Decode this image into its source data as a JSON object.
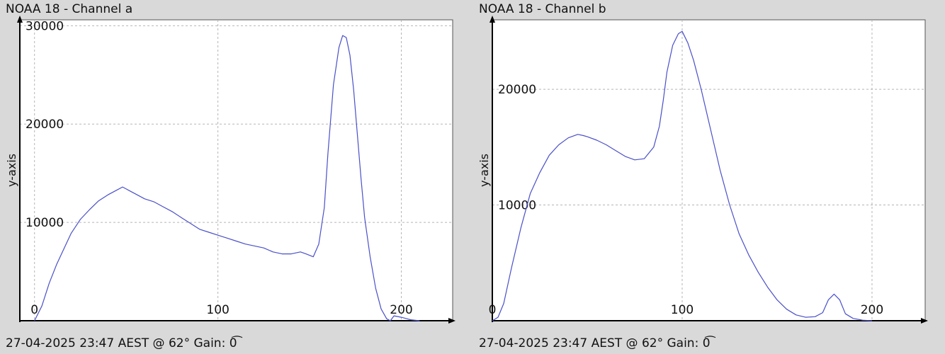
{
  "chart_data": [
    {
      "type": "line",
      "title": "NOAA 18 - Channel a",
      "ylabel": "y-axis",
      "footer": "27-04-2025 23:47 AEST @ 62° Gain: 0͡",
      "xlim": [
        -8,
        228
      ],
      "ylim": [
        0,
        30600
      ],
      "xticks": [
        0,
        100,
        200
      ],
      "yticks": [
        10000,
        20000,
        30000
      ],
      "grid": true,
      "line_color": "#4a50c8",
      "series": [
        {
          "x": [
            0,
            4,
            8,
            12,
            16,
            20,
            25,
            30,
            35,
            40,
            45,
            48,
            50,
            52,
            55,
            60,
            65,
            70,
            75,
            80,
            85,
            90,
            95,
            100,
            105,
            110,
            115,
            120,
            125,
            130,
            135,
            140,
            145,
            148,
            152,
            155,
            158,
            160,
            163,
            166,
            168,
            170,
            172,
            174,
            176,
            178,
            180,
            183,
            186,
            189,
            192,
            194,
            196,
            200,
            205,
            210
          ],
          "y": [
            0,
            1500,
            3800,
            5700,
            7300,
            8900,
            10300,
            11300,
            12200,
            12800,
            13300,
            13600,
            13400,
            13200,
            12900,
            12400,
            12100,
            11600,
            11100,
            10500,
            9900,
            9300,
            9000,
            8700,
            8400,
            8100,
            7800,
            7600,
            7400,
            7000,
            6800,
            6800,
            7000,
            6800,
            6500,
            7800,
            11500,
            17000,
            24000,
            27800,
            29000,
            28800,
            27000,
            23500,
            19000,
            14500,
            10500,
            6500,
            3300,
            1200,
            200,
            0,
            500,
            350,
            100,
            0
          ]
        }
      ]
    },
    {
      "type": "line",
      "title": "NOAA 18 - Channel b",
      "ylabel": "y-axis",
      "footer": "27-04-2025 23:47 AEST @ 62° Gain: 0͡",
      "xlim": [
        0,
        228
      ],
      "ylim": [
        0,
        26000
      ],
      "xticks": [
        0,
        100,
        200
      ],
      "yticks": [
        10000,
        20000
      ],
      "grid": true,
      "line_color": "#4a50c8",
      "series": [
        {
          "x": [
            0,
            3,
            6,
            10,
            15,
            20,
            25,
            30,
            35,
            40,
            45,
            48,
            50,
            55,
            60,
            65,
            70,
            75,
            80,
            85,
            88,
            90,
            92,
            95,
            98,
            100,
            103,
            106,
            110,
            115,
            120,
            125,
            130,
            135,
            140,
            145,
            150,
            155,
            160,
            165,
            170,
            174,
            177,
            180,
            183,
            186,
            190,
            195,
            200
          ],
          "y": [
            0,
            300,
            1500,
            4500,
            8000,
            11000,
            12800,
            14300,
            15200,
            15800,
            16100,
            16000,
            15900,
            15600,
            15200,
            14700,
            14200,
            13900,
            14000,
            15000,
            16800,
            19000,
            21500,
            23800,
            24800,
            25000,
            24000,
            22500,
            20000,
            16500,
            13000,
            10000,
            7500,
            5700,
            4200,
            2900,
            1800,
            1000,
            500,
            300,
            350,
            700,
            1800,
            2300,
            1800,
            600,
            200,
            50,
            0
          ]
        }
      ]
    }
  ]
}
